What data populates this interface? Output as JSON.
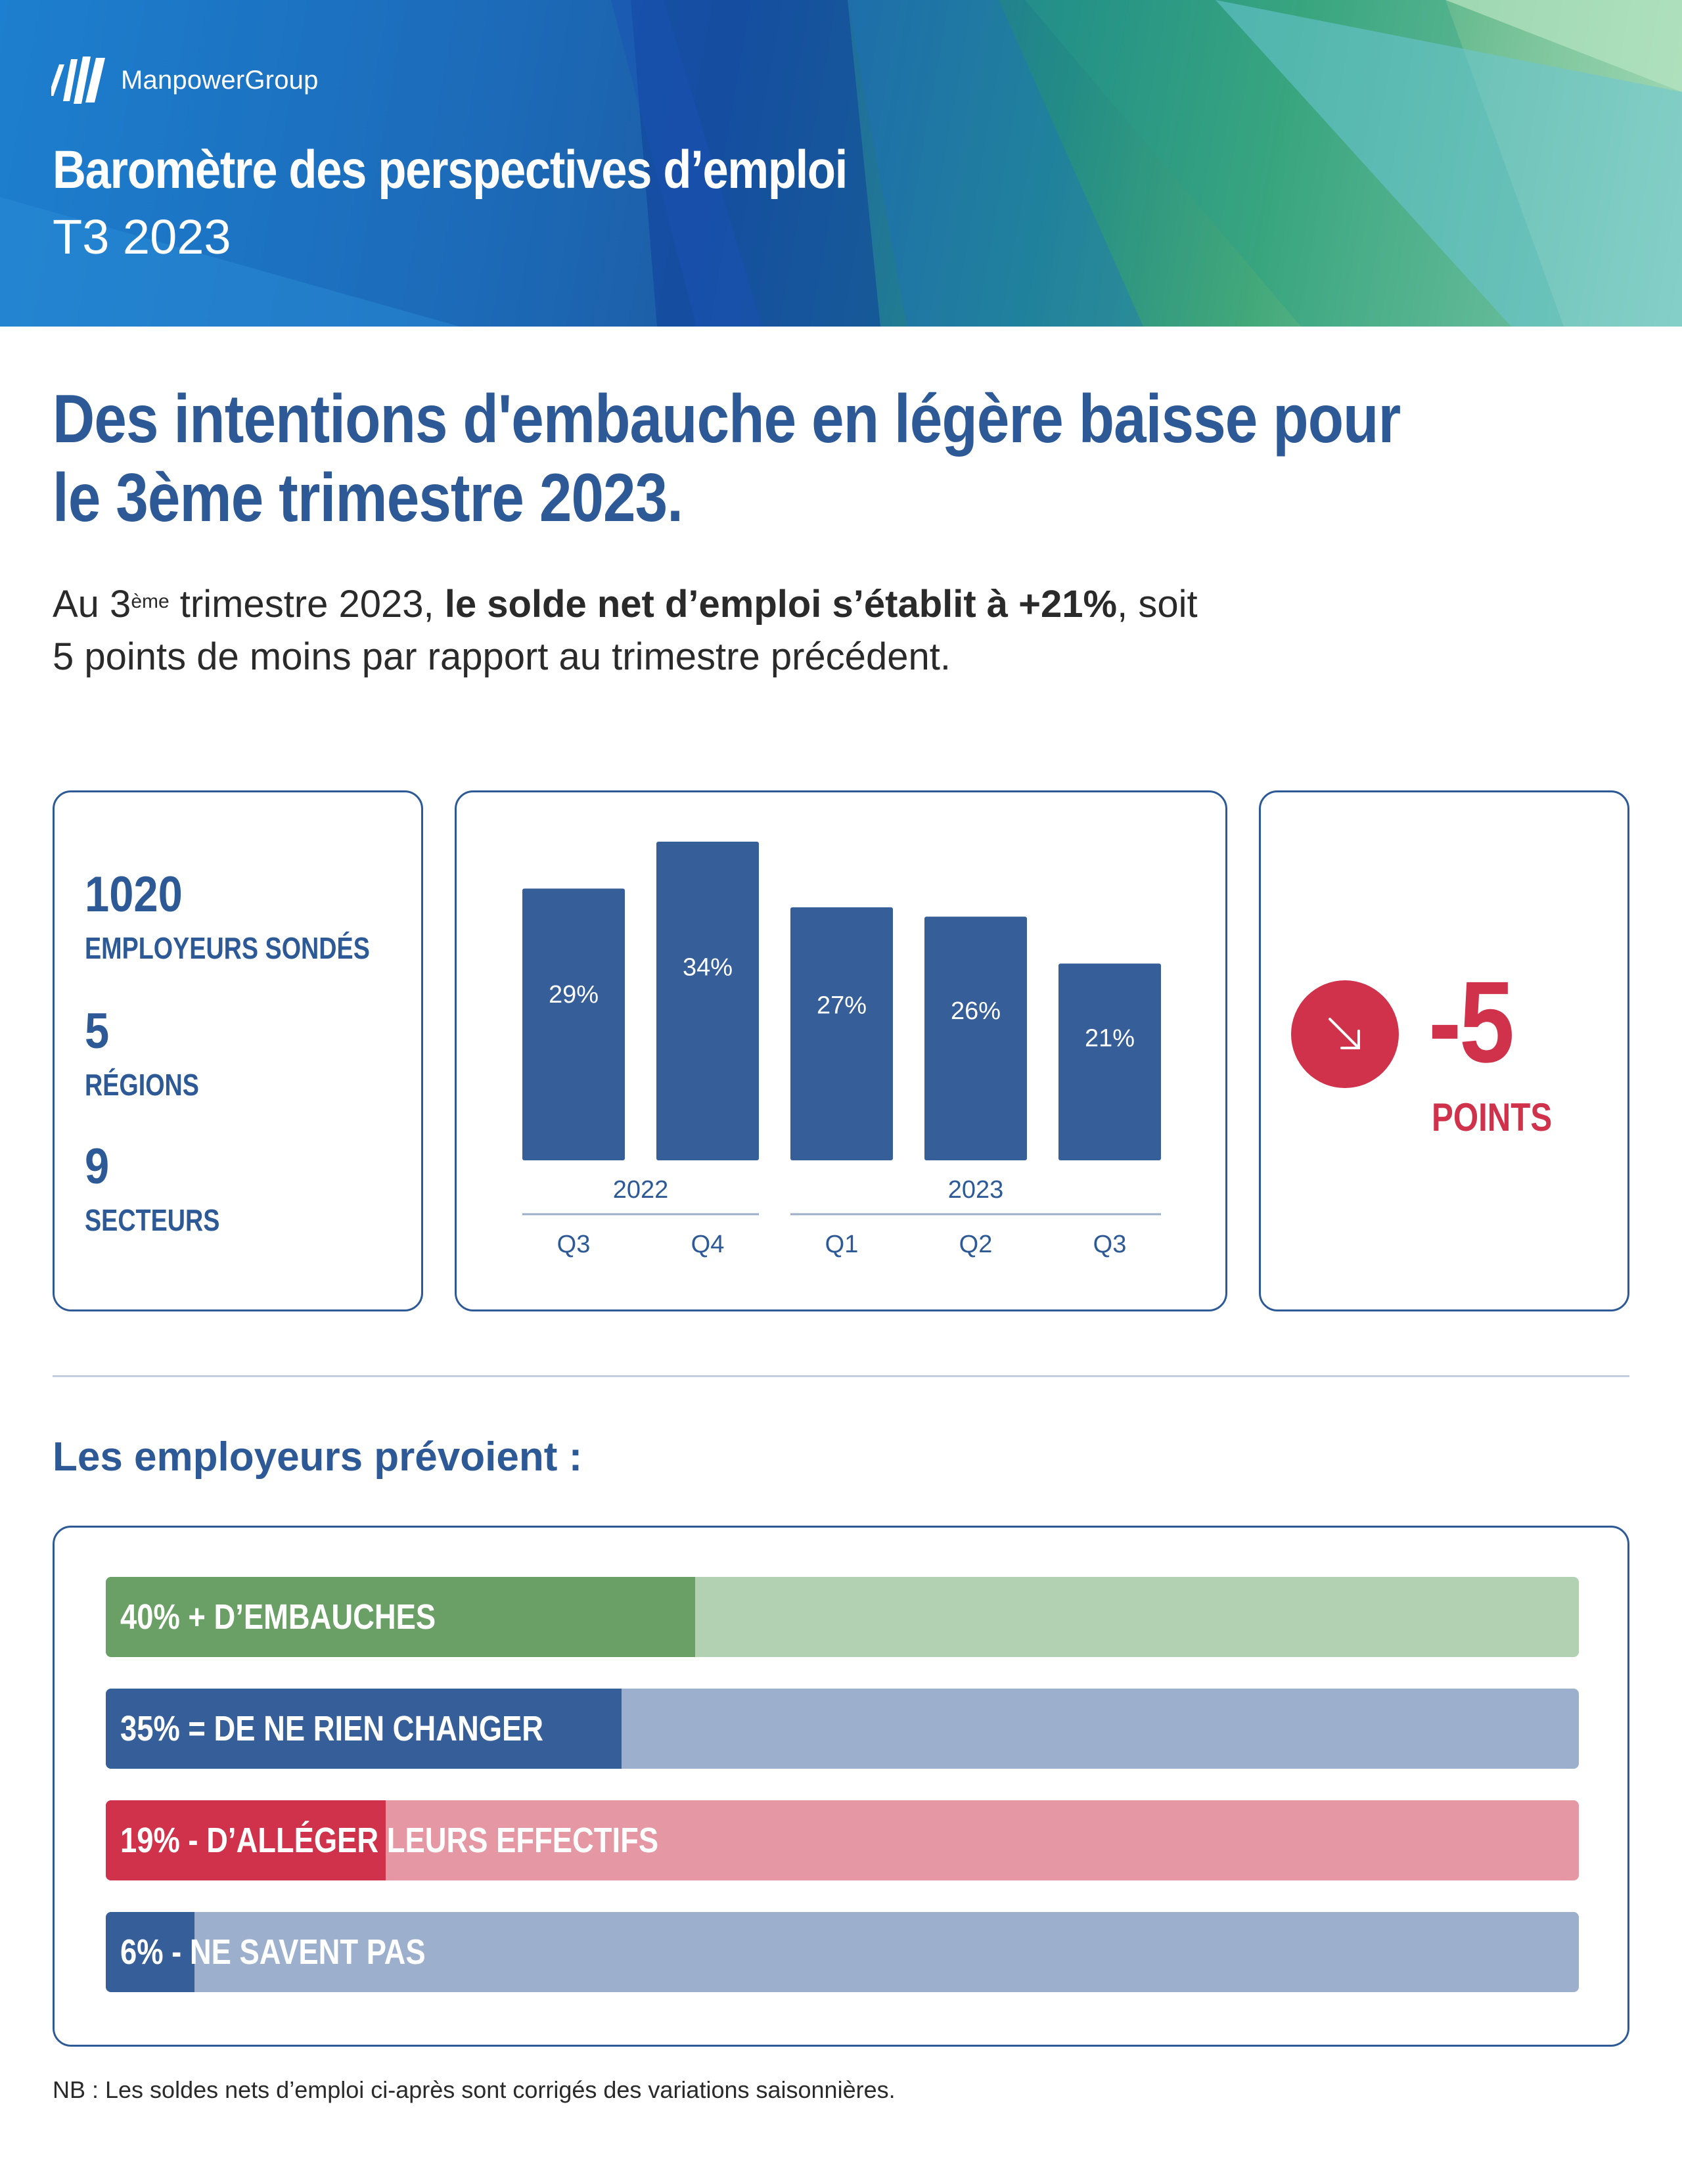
{
  "header": {
    "brand": "ManpowerGroup",
    "title": "Baromètre des perspectives d’emploi",
    "subtitle": "T3 2023"
  },
  "headline": "Des intentions d'embauche en légère baisse pour le 3ème trimestre 2023.",
  "intro": {
    "part1": "Au 3",
    "sup": "ème",
    "part2": " trimestre 2023, ",
    "bold": "le solde net d’emploi s’établit à +21%",
    "part3": ", soit 5 points de moins par rapport au trimestre précédent."
  },
  "stats": [
    {
      "value": "1020",
      "label": "EMPLOYEURS SONDÉS"
    },
    {
      "value": "5",
      "label": "RÉGIONS"
    },
    {
      "value": "9",
      "label": "SECTEURS"
    }
  ],
  "delta": {
    "value": "-5",
    "unit": "POINTS",
    "icon": "arrow-down-right-icon"
  },
  "section_title": "Les employeurs prévoient :",
  "distribution": [
    {
      "label": "40% + D’EMBAUCHES",
      "value": 40,
      "fill": "#6a9f65",
      "track": "#b2d1b3"
    },
    {
      "label": "35% = DE NE RIEN CHANGER",
      "value": 35,
      "fill": "#365e98",
      "track": "#9cb0cd"
    },
    {
      "label": "19% - D’ALLÉGER LEURS EFFECTIFS",
      "value": 19,
      "fill": "#d0324b",
      "track": "#e598a4"
    },
    {
      "label": "6% - NE SAVENT PAS",
      "value": 6,
      "fill": "#365e98",
      "track": "#9cb0cd"
    }
  ],
  "footnote": "NB : Les soldes nets d’emploi ci-après sont corrigés des variations saisonnières.",
  "colors": {
    "primary": "#2d5a96",
    "bar": "#365e98",
    "accent": "#d0324b"
  },
  "chart_data": {
    "type": "bar",
    "categories": [
      "Q3",
      "Q4",
      "Q1",
      "Q2",
      "Q3"
    ],
    "groups": [
      {
        "label": "2022",
        "from": 0,
        "to": 1
      },
      {
        "label": "2023",
        "from": 2,
        "to": 4
      }
    ],
    "values": [
      29,
      34,
      27,
      26,
      21
    ],
    "data_labels": [
      "29%",
      "34%",
      "27%",
      "26%",
      "21%"
    ],
    "ylim": [
      0,
      34
    ],
    "title": "",
    "xlabel": "",
    "ylabel": ""
  }
}
